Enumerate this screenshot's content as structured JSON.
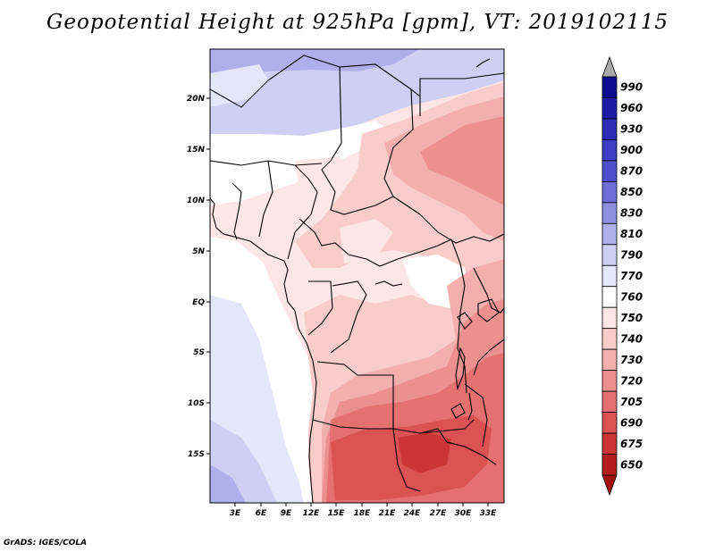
{
  "title": "Geopotential Height at 925hPa [gpm], VT: 2019102115",
  "credit": "GrADS: IGES/COLA",
  "lat_labels": [
    "20N",
    "15N",
    "10N",
    "5N",
    "EQ",
    "5S",
    "10S",
    "15S"
  ],
  "lon_labels": [
    "3E",
    "6E",
    "9E",
    "12E",
    "15E",
    "18E",
    "21E",
    "24E",
    "27E",
    "30E",
    "33E"
  ],
  "colorbar": {
    "levels": [
      "990",
      "960",
      "930",
      "900",
      "870",
      "850",
      "830",
      "810",
      "790",
      "770",
      "760",
      "750",
      "740",
      "730",
      "720",
      "705",
      "690",
      "675",
      "650"
    ],
    "colors": [
      "#0c0c8f",
      "#1c1ca6",
      "#2d2db5",
      "#3e3ec4",
      "#5050cc",
      "#6e6ed6",
      "#8f8fe0",
      "#afafeb",
      "#cfcff4",
      "#e6e6fb",
      "#ffffff",
      "#fde6e6",
      "#f9cccc",
      "#f3aeae",
      "#ec8f8f",
      "#e47070",
      "#da5252",
      "#cc3535",
      "#b51e1e"
    ],
    "top_arrow_color": "#a8a8a8",
    "bottom_arrow_color": "#a51010"
  }
}
